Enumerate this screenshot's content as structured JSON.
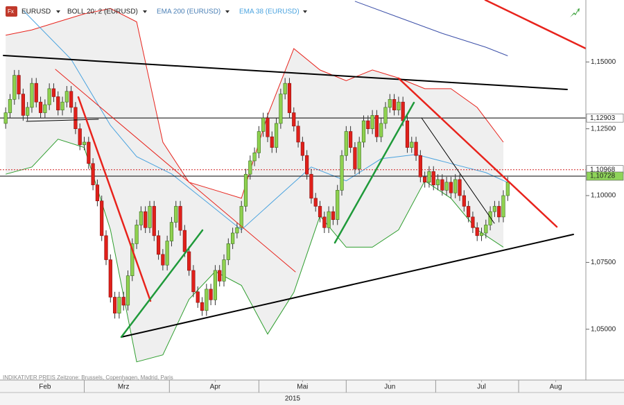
{
  "chart_data": {
    "type": "candlestick",
    "symbol": "EURUSD",
    "up_color": "#8fd14f",
    "down_color": "#e0201a",
    "open": [
      1.127,
      1.131,
      1.136,
      1.145,
      1.138,
      1.13,
      1.133,
      1.142,
      1.135,
      1.131,
      1.134,
      1.14,
      1.137,
      1.132,
      1.135,
      1.139,
      1.133,
      1.125,
      1.119,
      1.12,
      1.112,
      1.104,
      1.098,
      1.085,
      1.076,
      1.062,
      1.056,
      1.062,
      1.059,
      1.07,
      1.082,
      1.089,
      1.094,
      1.088,
      1.096,
      1.085,
      1.078,
      1.074,
      1.083,
      1.09,
      1.096,
      1.087,
      1.079,
      1.072,
      1.064,
      1.06,
      1.057,
      1.065,
      1.061,
      1.072,
      1.068,
      1.076,
      1.082,
      1.086,
      1.088,
      1.096,
      1.108,
      1.113,
      1.116,
      1.124,
      1.129,
      1.122,
      1.118,
      1.127,
      1.138,
      1.142,
      1.131,
      1.126,
      1.12,
      1.115,
      1.108,
      1.099,
      1.096,
      1.092,
      1.088,
      1.094,
      1.091,
      1.102,
      1.115,
      1.124,
      1.118,
      1.11,
      1.12,
      1.128,
      1.125,
      1.13,
      1.122,
      1.127,
      1.133,
      1.136,
      1.132,
      1.135,
      1.128,
      1.118,
      1.12,
      1.115,
      1.107,
      1.105,
      1.109,
      1.104,
      1.106,
      1.102,
      1.105,
      1.101,
      1.106,
      1.1,
      1.096,
      1.092,
      1.088,
      1.085,
      1.086,
      1.089,
      1.094,
      1.096,
      1.092,
      1.1
    ],
    "high": [
      1.133,
      1.138,
      1.147,
      1.147,
      1.14,
      1.135,
      1.144,
      1.144,
      1.137,
      1.136,
      1.142,
      1.142,
      1.139,
      1.137,
      1.141,
      1.141,
      1.135,
      1.127,
      1.122,
      1.122,
      1.114,
      1.106,
      1.1,
      1.087,
      1.078,
      1.064,
      1.064,
      1.064,
      1.072,
      1.084,
      1.091,
      1.096,
      1.096,
      1.098,
      1.098,
      1.087,
      1.08,
      1.085,
      1.092,
      1.098,
      1.098,
      1.089,
      1.081,
      1.074,
      1.066,
      1.062,
      1.067,
      1.067,
      1.074,
      1.074,
      1.078,
      1.084,
      1.088,
      1.09,
      1.098,
      1.11,
      1.115,
      1.118,
      1.126,
      1.131,
      1.131,
      1.124,
      1.129,
      1.14,
      1.144,
      1.144,
      1.133,
      1.128,
      1.122,
      1.117,
      1.11,
      1.101,
      1.098,
      1.094,
      1.096,
      1.096,
      1.104,
      1.117,
      1.126,
      1.126,
      1.12,
      1.122,
      1.13,
      1.13,
      1.132,
      1.132,
      1.129,
      1.135,
      1.138,
      1.138,
      1.137,
      1.137,
      1.13,
      1.122,
      1.122,
      1.117,
      1.109,
      1.111,
      1.111,
      1.108,
      1.108,
      1.107,
      1.107,
      1.108,
      1.108,
      1.102,
      1.098,
      1.094,
      1.09,
      1.088,
      1.091,
      1.096,
      1.098,
      1.098,
      1.102,
      1.107
    ],
    "low": [
      1.125,
      1.129,
      1.134,
      1.136,
      1.128,
      1.128,
      1.131,
      1.133,
      1.129,
      1.129,
      1.132,
      1.135,
      1.13,
      1.13,
      1.133,
      1.131,
      1.123,
      1.117,
      1.117,
      1.11,
      1.102,
      1.096,
      1.083,
      1.074,
      1.06,
      1.054,
      1.054,
      1.057,
      1.057,
      1.068,
      1.08,
      1.087,
      1.086,
      1.086,
      1.083,
      1.076,
      1.072,
      1.072,
      1.081,
      1.088,
      1.085,
      1.077,
      1.07,
      1.062,
      1.058,
      1.055,
      1.055,
      1.059,
      1.059,
      1.066,
      1.066,
      1.074,
      1.08,
      1.084,
      1.086,
      1.094,
      1.106,
      1.111,
      1.114,
      1.122,
      1.12,
      1.116,
      1.116,
      1.125,
      1.136,
      1.129,
      1.124,
      1.118,
      1.113,
      1.106,
      1.097,
      1.094,
      1.09,
      1.086,
      1.086,
      1.089,
      1.089,
      1.1,
      1.113,
      1.116,
      1.108,
      1.108,
      1.118,
      1.123,
      1.123,
      1.12,
      1.12,
      1.125,
      1.131,
      1.13,
      1.13,
      1.126,
      1.116,
      1.116,
      1.113,
      1.105,
      1.103,
      1.103,
      1.102,
      1.102,
      1.1,
      1.1,
      1.099,
      1.099,
      1.098,
      1.094,
      1.09,
      1.086,
      1.083,
      1.083,
      1.084,
      1.087,
      1.092,
      1.09,
      1.09,
      1.098
    ],
    "close": [
      1.131,
      1.136,
      1.145,
      1.138,
      1.13,
      1.133,
      1.142,
      1.135,
      1.131,
      1.134,
      1.14,
      1.137,
      1.132,
      1.135,
      1.139,
      1.133,
      1.125,
      1.119,
      1.12,
      1.112,
      1.104,
      1.098,
      1.085,
      1.076,
      1.062,
      1.056,
      1.062,
      1.059,
      1.07,
      1.082,
      1.089,
      1.094,
      1.088,
      1.096,
      1.085,
      1.078,
      1.074,
      1.083,
      1.09,
      1.096,
      1.087,
      1.079,
      1.072,
      1.064,
      1.06,
      1.057,
      1.065,
      1.061,
      1.072,
      1.068,
      1.076,
      1.082,
      1.086,
      1.088,
      1.096,
      1.108,
      1.113,
      1.116,
      1.124,
      1.129,
      1.122,
      1.118,
      1.127,
      1.138,
      1.142,
      1.131,
      1.126,
      1.12,
      1.115,
      1.108,
      1.099,
      1.096,
      1.092,
      1.088,
      1.094,
      1.091,
      1.102,
      1.115,
      1.124,
      1.118,
      1.11,
      1.12,
      1.128,
      1.125,
      1.13,
      1.122,
      1.127,
      1.133,
      1.136,
      1.132,
      1.135,
      1.128,
      1.118,
      1.12,
      1.115,
      1.107,
      1.105,
      1.109,
      1.104,
      1.106,
      1.102,
      1.105,
      1.101,
      1.106,
      1.1,
      1.096,
      1.092,
      1.088,
      1.085,
      1.086,
      1.089,
      1.094,
      1.096,
      1.092,
      1.1,
      1.105
    ],
    "overlays": [
      {
        "name": "BOLL 20; 2 (EURUSD)",
        "color": "#e8231c",
        "lower_color": "#2e9e2e",
        "fill": "#efefef",
        "x": [
          0,
          6,
          12,
          18,
          24,
          30,
          36,
          42,
          48,
          54,
          60,
          66,
          72,
          78,
          84,
          90,
          96,
          102,
          108,
          114
        ],
        "upper": [
          1.16,
          1.162,
          1.165,
          1.168,
          1.17,
          1.165,
          1.12,
          1.105,
          1.102,
          1.099,
          1.13,
          1.155,
          1.147,
          1.143,
          1.147,
          1.144,
          1.14,
          1.14,
          1.133,
          1.12
        ],
        "lower": [
          1.108,
          1.1107,
          1.1211,
          1.118,
          1.0872,
          1.0378,
          1.0404,
          1.0612,
          1.0716,
          1.0664,
          1.0482,
          1.0638,
          1.0924,
          1.0807,
          1.0807,
          1.0872,
          1.1055,
          1.099,
          1.0872,
          1.0807
        ]
      },
      {
        "name": "EMA 200 (EURUSD)",
        "color": "#3b4fa8",
        "x": [
          80,
          90,
          100,
          110,
          115
        ],
        "values": [
          1.1727,
          1.1667,
          1.1607,
          1.1555,
          1.1523
        ]
      },
      {
        "name": "EMA 38 (EURUSD)",
        "color": "#4aa3df",
        "x": [
          4,
          15,
          24,
          30,
          38,
          46,
          54,
          62,
          70,
          78,
          86,
          94,
          102,
          110,
          115
        ],
        "values": [
          1.1693,
          1.151,
          1.1263,
          1.1146,
          1.1081,
          1.0977,
          1.0872,
          1.099,
          1.1107,
          1.1055,
          1.1138,
          1.1154,
          1.112,
          1.1086,
          1.1049
        ]
      }
    ],
    "price_levels": [
      {
        "value": 1.12903,
        "label": "1,12903",
        "color": "#000000",
        "box": "#ffffff"
      },
      {
        "value": 1.10968,
        "label": "1,10968",
        "color": "#d02020",
        "box": "#ffffff"
      },
      {
        "value": 1.10728,
        "label": "1,10728",
        "color": "#000000",
        "box": "#8fd45a"
      }
    ],
    "xlim": [
      -1.3,
      132.9
    ],
    "xticks": [
      {
        "value": 9,
        "label": "Feb"
      },
      {
        "value": 27,
        "label": "Mrz"
      },
      {
        "value": 48,
        "label": "Apr"
      },
      {
        "value": 68,
        "label": "Mai"
      },
      {
        "value": 88,
        "label": "Jun"
      },
      {
        "value": 109,
        "label": "Jul"
      },
      {
        "value": 126,
        "label": "Aug"
      }
    ],
    "ylim": [
      1.03125,
      1.17318
    ],
    "yticks": [
      {
        "value": 1.15,
        "label": "1,15000"
      },
      {
        "value": 1.125,
        "label": "1,12500"
      },
      {
        "value": 1.1,
        "label": "1,10000"
      },
      {
        "value": 1.075,
        "label": "1,07500"
      },
      {
        "value": 1.05,
        "label": "1,05000"
      }
    ],
    "footer_note": "INDIKATIVER PREIS  Zeitzone: Brussels, Copenhagen, Madrid, Paris",
    "year": "2015"
  }
}
